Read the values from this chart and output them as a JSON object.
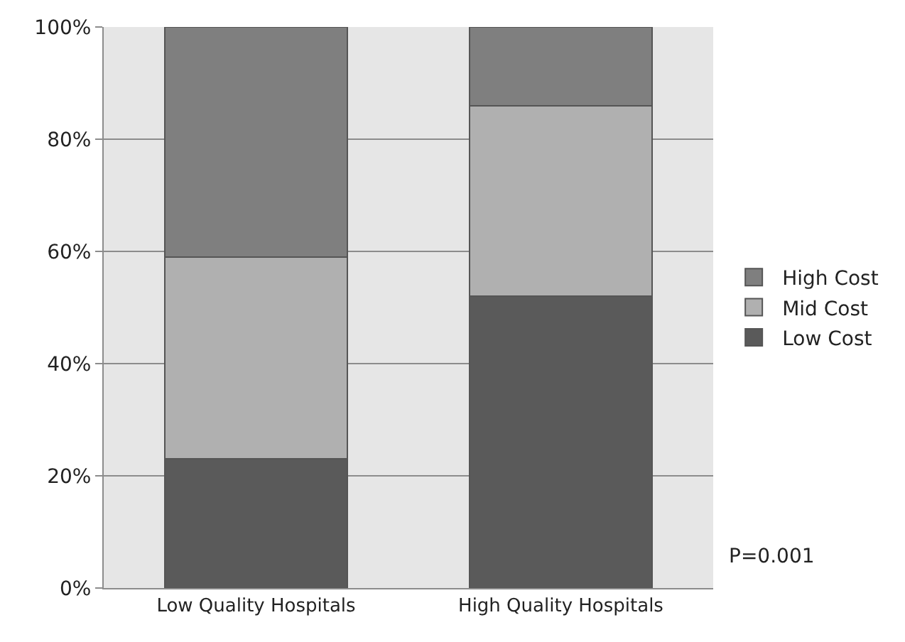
{
  "chart_data": {
    "type": "bar",
    "stacked": true,
    "categories": [
      "Low Quality Hospitals",
      "High Quality Hospitals"
    ],
    "series": [
      {
        "name": "Low Cost",
        "color": "#5a5a5a",
        "values": [
          23,
          52
        ]
      },
      {
        "name": "Mid Cost",
        "color": "#b0b0b0",
        "values": [
          36,
          34
        ]
      },
      {
        "name": "High Cost",
        "color": "#7f7f7f",
        "values": [
          41,
          14
        ]
      }
    ],
    "ylim": [
      0,
      100
    ],
    "yticks": [
      {
        "value": 0,
        "label": "0%"
      },
      {
        "value": 20,
        "label": "20%"
      },
      {
        "value": 40,
        "label": "40%"
      },
      {
        "value": 60,
        "label": "60%"
      },
      {
        "value": 80,
        "label": "80%"
      },
      {
        "value": 100,
        "label": "100%"
      }
    ],
    "grid": "y",
    "legend": "right",
    "annotations": [
      "P=0.001"
    ]
  }
}
